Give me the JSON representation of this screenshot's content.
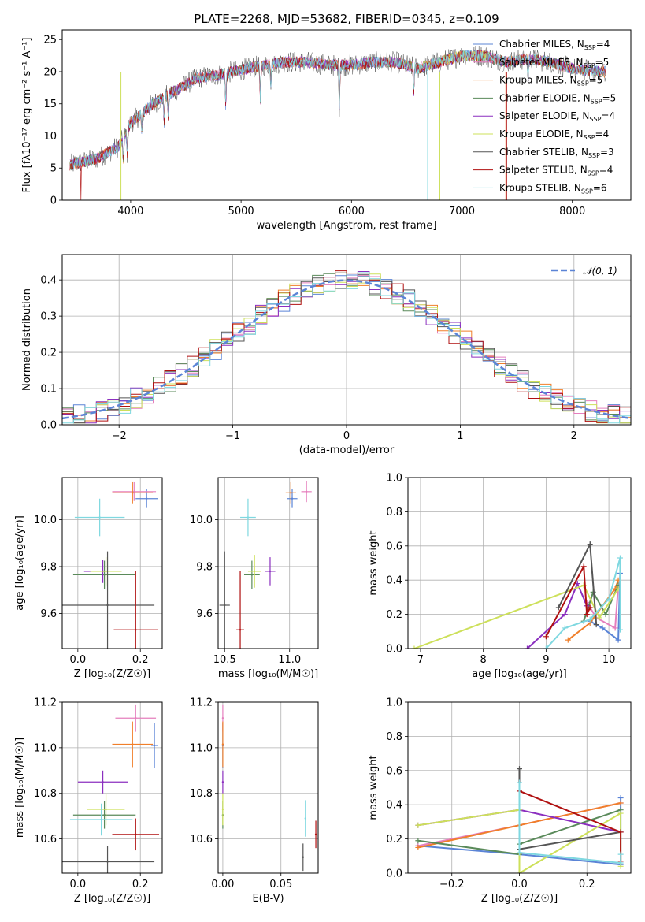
{
  "figure": {
    "title": "PLATE=2268, MJD=53682, FIBERID=0345, z=0.109"
  },
  "colors": {
    "Chabrier MILES": "#5b84d6",
    "Salpeter MILES": "#e57fbd",
    "Kroupa MILES": "#f07f2a",
    "Chabrier ELODIE": "#5a8a5a",
    "Salpeter ELODIE": "#8b2fbf",
    "Kroupa ELODIE": "#cde05a",
    "Chabrier STELIB": "#555555",
    "Salpeter STELIB": "#b01010",
    "Kroupa STELIB": "#7fd8e0",
    "normal": "#5b84d6"
  },
  "chart_data": [
    {
      "id": "spectrum",
      "type": "line",
      "title": "PLATE=2268, MJD=53682, FIBERID=0345, z=0.109",
      "xlabel": "wavelength [Angstrom, rest frame]",
      "ylabel": "Flux [fλ10⁻¹⁷ erg cm⁻² s⁻¹ A⁻¹]",
      "xlim": [
        3380,
        8530
      ],
      "ylim": [
        0,
        26.5
      ],
      "xticks": [
        4000,
        5000,
        6000,
        7000,
        8000
      ],
      "yticks": [
        0,
        5,
        10,
        15,
        20,
        25
      ],
      "grid": false,
      "legend_position": "right",
      "continuum_wavelength": [
        3450,
        3700,
        3900,
        4000,
        4200,
        4400,
        4600,
        4800,
        5000,
        5200,
        5400,
        5600,
        5800,
        6000,
        6200,
        6400,
        6600,
        6800,
        7000,
        7200,
        7400,
        7600,
        7800,
        8000,
        8300
      ],
      "continuum_flux": [
        5.5,
        6.5,
        8.5,
        12,
        15,
        17,
        19,
        19.5,
        20.3,
        21,
        21.5,
        21.5,
        21,
        21,
        21.5,
        21.5,
        20.5,
        21.5,
        22.5,
        22.5,
        21.5,
        22,
        21.5,
        20.5,
        20
      ],
      "series": [
        {
          "name": "Chabrier MILES, N_SSP=4"
        },
        {
          "name": "Salpeter MILES, N_SSP=5"
        },
        {
          "name": "Kroupa MILES, N_SSP=5"
        },
        {
          "name": "Chabrier ELODIE, N_SSP=5"
        },
        {
          "name": "Salpeter ELODIE, N_SSP=4"
        },
        {
          "name": "Kroupa ELODIE, N_SSP=4"
        },
        {
          "name": "Chabrier STELIB, N_SSP=3"
        },
        {
          "name": "Salpeter STELIB, N_SSP=4"
        },
        {
          "name": "Kroupa STELIB, N_SSP=6"
        }
      ]
    },
    {
      "id": "residuals",
      "type": "line",
      "xlabel": "(data-model)/error",
      "ylabel": "Normed distribution",
      "xlim": [
        -2.5,
        2.5
      ],
      "ylim": [
        0,
        0.47
      ],
      "xticks": [
        -2,
        -1,
        0,
        1,
        2
      ],
      "yticks": [
        0.0,
        0.1,
        0.2,
        0.3,
        0.4
      ],
      "grid": true,
      "legend_position": "top-right",
      "normal_label": "𝒩(0, 1)",
      "bin_width": 0.1,
      "note": "nine step histograms of residuals with a dashed unit normal curve"
    },
    {
      "id": "age_vs_Z",
      "type": "scatter",
      "xlabel": "Z [log₁₀(Z/Z☉)]",
      "ylabel": "age  [log₁₀(age/yr)]",
      "xlim": [
        -0.05,
        0.27
      ],
      "ylim": [
        9.45,
        10.18
      ],
      "xticks": [
        0.0,
        0.2
      ],
      "yticks": [
        9.6,
        9.8,
        10.0
      ],
      "grid": true,
      "points": [
        {
          "series": "Chabrier MILES",
          "x": 0.22,
          "y": 10.09,
          "xerr": 0.035,
          "yerr": 0.04
        },
        {
          "series": "Salpeter MILES",
          "x": 0.18,
          "y": 10.12,
          "xerr": 0.07,
          "yerr": 0.04
        },
        {
          "series": "Kroupa MILES",
          "x": 0.175,
          "y": 10.115,
          "xerr": 0.065,
          "yerr": 0.045
        },
        {
          "series": "Chabrier ELODIE",
          "x": 0.085,
          "y": 9.765,
          "xerr": 0.1,
          "yerr": 0.06
        },
        {
          "series": "Salpeter ELODIE",
          "x": 0.08,
          "y": 9.78,
          "xerr": 0.06,
          "yerr": 0.05
        },
        {
          "series": "Kroupa ELODIE",
          "x": 0.09,
          "y": 9.78,
          "xerr": 0.05,
          "yerr": 0.06
        },
        {
          "series": "Chabrier STELIB",
          "x": 0.095,
          "y": 9.635,
          "xerr": 0.15,
          "yerr": 0.23
        },
        {
          "series": "Salpeter STELIB",
          "x": 0.185,
          "y": 9.53,
          "xerr": 0.07,
          "yerr": 0.25
        },
        {
          "series": "Kroupa STELIB",
          "x": 0.07,
          "y": 10.01,
          "xerr": 0.08,
          "yerr": 0.08
        }
      ]
    },
    {
      "id": "age_vs_mass",
      "type": "scatter",
      "xlabel": "mass [log₁₀(M/M☉)]",
      "ylabel": "",
      "xlim": [
        10.45,
        11.22
      ],
      "ylim": [
        9.45,
        10.18
      ],
      "xticks": [
        10.5,
        11.0
      ],
      "yticks": [
        9.6,
        9.8,
        10.0
      ],
      "grid": true,
      "points": [
        {
          "series": "Chabrier MILES",
          "x": 11.02,
          "y": 10.09,
          "xerr": 0.04,
          "yerr": 0.04
        },
        {
          "series": "Salpeter MILES",
          "x": 11.13,
          "y": 10.12,
          "xerr": 0.04,
          "yerr": 0.045
        },
        {
          "series": "Kroupa MILES",
          "x": 11.01,
          "y": 10.115,
          "xerr": 0.04,
          "yerr": 0.045
        },
        {
          "series": "Chabrier ELODIE",
          "x": 10.71,
          "y": 9.765,
          "xerr": 0.06,
          "yerr": 0.06
        },
        {
          "series": "Salpeter ELODIE",
          "x": 10.85,
          "y": 9.78,
          "xerr": 0.04,
          "yerr": 0.06
        },
        {
          "series": "Kroupa ELODIE",
          "x": 10.73,
          "y": 9.78,
          "xerr": 0.05,
          "yerr": 0.07
        },
        {
          "series": "Chabrier STELIB",
          "x": 10.5,
          "y": 9.635,
          "xerr": 0.04,
          "yerr": 0.23
        },
        {
          "series": "Salpeter STELIB",
          "x": 10.62,
          "y": 9.53,
          "xerr": 0.03,
          "yerr": 0.25
        },
        {
          "series": "Kroupa STELIB",
          "x": 10.68,
          "y": 10.01,
          "xerr": 0.06,
          "yerr": 0.08
        }
      ]
    },
    {
      "id": "weight_vs_age",
      "type": "line",
      "xlabel": "age  [log₁₀(age/yr)]",
      "ylabel": "mass weight",
      "xlim": [
        6.8,
        10.35
      ],
      "ylim": [
        0.0,
        1.0
      ],
      "xticks": [
        7,
        8,
        9,
        10
      ],
      "yticks": [
        0.0,
        0.2,
        0.4,
        0.6,
        0.8,
        1.0
      ],
      "grid": true,
      "series": [
        {
          "key": "Chabrier MILES",
          "x": [
            9.7,
            9.9,
            10.15,
            10.18
          ],
          "y": [
            0.16,
            0.12,
            0.05,
            0.44
          ]
        },
        {
          "key": "Salpeter MILES",
          "x": [
            9.65,
            9.8,
            10.1,
            10.15
          ],
          "y": [
            0.27,
            0.18,
            0.12,
            0.37
          ]
        },
        {
          "key": "Kroupa MILES",
          "x": [
            9.35,
            9.7,
            10.1,
            10.15
          ],
          "y": [
            0.05,
            0.15,
            0.35,
            0.4
          ]
        },
        {
          "key": "Chabrier ELODIE",
          "x": [
            9.6,
            9.75,
            9.95,
            10.15
          ],
          "y": [
            0.16,
            0.33,
            0.2,
            0.37
          ]
        },
        {
          "key": "Salpeter ELODIE",
          "x": [
            8.7,
            9.3,
            9.5,
            9.65
          ],
          "y": [
            0.0,
            0.2,
            0.38,
            0.25
          ]
        },
        {
          "key": "Kroupa ELODIE",
          "x": [
            6.9,
            9.6,
            9.85,
            10.15
          ],
          "y": [
            0.0,
            0.37,
            0.18,
            0.35
          ]
        },
        {
          "key": "Chabrier STELIB",
          "x": [
            9.2,
            9.7,
            9.8
          ],
          "y": [
            0.24,
            0.61,
            0.14
          ]
        },
        {
          "key": "Salpeter STELIB",
          "x": [
            9.0,
            9.6,
            9.65,
            9.7
          ],
          "y": [
            0.07,
            0.48,
            0.2,
            0.24
          ]
        },
        {
          "key": "Kroupa STELIB",
          "x": [
            9.0,
            9.3,
            9.7,
            10.0,
            10.18,
            10.18
          ],
          "y": [
            0.0,
            0.12,
            0.17,
            0.29,
            0.53,
            0.11
          ]
        }
      ]
    },
    {
      "id": "mass_vs_Z",
      "type": "scatter",
      "xlabel": "Z [log₁₀(Z/Z☉)]",
      "ylabel": "mass [log₁₀(M/M☉)]",
      "xlim": [
        -0.05,
        0.27
      ],
      "ylim": [
        10.45,
        11.2
      ],
      "xticks": [
        0.0,
        0.2
      ],
      "yticks": [
        10.6,
        10.8,
        11.0,
        11.2
      ],
      "grid": true,
      "points": [
        {
          "series": "Chabrier MILES",
          "x": 0.245,
          "y": 11.01,
          "xerr": 0.01,
          "yerr": 0.1
        },
        {
          "series": "Salpeter MILES",
          "x": 0.185,
          "y": 11.13,
          "xerr": 0.065,
          "yerr": 0.06
        },
        {
          "series": "Kroupa MILES",
          "x": 0.175,
          "y": 11.015,
          "xerr": 0.065,
          "yerr": 0.1
        },
        {
          "series": "Chabrier ELODIE",
          "x": 0.085,
          "y": 10.705,
          "xerr": 0.1,
          "yerr": 0.06
        },
        {
          "series": "Salpeter ELODIE",
          "x": 0.08,
          "y": 10.85,
          "xerr": 0.08,
          "yerr": 0.05
        },
        {
          "series": "Kroupa ELODIE",
          "x": 0.09,
          "y": 10.73,
          "xerr": 0.06,
          "yerr": 0.07
        },
        {
          "series": "Chabrier STELIB",
          "x": 0.095,
          "y": 10.5,
          "xerr": 0.15,
          "yerr": 0.07
        },
        {
          "series": "Salpeter STELIB",
          "x": 0.185,
          "y": 10.62,
          "xerr": 0.075,
          "yerr": 0.07
        },
        {
          "series": "Kroupa STELIB",
          "x": 0.075,
          "y": 10.685,
          "xerr": 0.1,
          "yerr": 0.07
        }
      ]
    },
    {
      "id": "mass_vs_ebv",
      "type": "scatter",
      "xlabel": "E(B-V)",
      "ylabel": "",
      "xlim": [
        -0.004,
        0.082
      ],
      "ylim": [
        10.45,
        11.2
      ],
      "xticks": [
        0.0,
        0.05
      ],
      "yticks": [
        10.6,
        10.8,
        11.0,
        11.2
      ],
      "grid": true,
      "points": [
        {
          "series": "Chabrier MILES",
          "x": 0.0,
          "y": 11.01,
          "yerr": 0.1
        },
        {
          "series": "Salpeter MILES",
          "x": 0.0,
          "y": 11.13,
          "yerr": 0.06
        },
        {
          "series": "Kroupa MILES",
          "x": 0.0,
          "y": 11.015,
          "yerr": 0.1
        },
        {
          "series": "Chabrier ELODIE",
          "x": 0.0,
          "y": 10.705,
          "yerr": 0.06
        },
        {
          "series": "Salpeter ELODIE",
          "x": 0.0,
          "y": 10.85,
          "yerr": 0.05
        },
        {
          "series": "Kroupa ELODIE",
          "x": 0.0,
          "y": 10.73,
          "yerr": 0.07
        },
        {
          "series": "Chabrier STELIB",
          "x": 0.069,
          "y": 10.52,
          "yerr": 0.06
        },
        {
          "series": "Salpeter STELIB",
          "x": 0.08,
          "y": 10.62,
          "yerr": 0.06
        },
        {
          "series": "Kroupa STELIB",
          "x": 0.071,
          "y": 10.69,
          "yerr": 0.08
        }
      ]
    },
    {
      "id": "weight_vs_Z",
      "type": "line",
      "xlabel": "Z [log₁₀(Z/Z☉)]",
      "ylabel": "mass weight",
      "xlim": [
        -0.33,
        0.33
      ],
      "ylim": [
        0.0,
        1.0
      ],
      "xticks": [
        -0.2,
        0.0,
        0.2
      ],
      "yticks": [
        0.0,
        0.2,
        0.4,
        0.6,
        0.8,
        1.0
      ],
      "grid": true,
      "series": [
        {
          "key": "Chabrier MILES",
          "x": [
            -0.3,
            0.0,
            0.3,
            0.3
          ],
          "y": [
            0.16,
            0.11,
            0.05,
            0.44
          ]
        },
        {
          "key": "Salpeter MILES",
          "x": [
            -0.3,
            0.0,
            0.3
          ],
          "y": [
            0.16,
            0.28,
            0.41
          ]
        },
        {
          "key": "Kroupa MILES",
          "x": [
            -0.3,
            0.0,
            0.3
          ],
          "y": [
            0.15,
            0.28,
            0.41
          ]
        },
        {
          "key": "Chabrier ELODIE",
          "x": [
            -0.3,
            0.0,
            0.0,
            0.3
          ],
          "y": [
            0.19,
            0.11,
            0.17,
            0.37
          ]
        },
        {
          "key": "Salpeter ELODIE",
          "x": [
            -0.3,
            0.0,
            0.3
          ],
          "y": [
            0.28,
            0.37,
            0.24
          ]
        },
        {
          "key": "Kroupa ELODIE",
          "x": [
            -0.3,
            0.0,
            0.0,
            0.3,
            0.3
          ],
          "y": [
            0.28,
            0.37,
            0.0,
            0.35,
            0.04
          ]
        },
        {
          "key": "Chabrier STELIB",
          "x": [
            0.0,
            0.0,
            0.3
          ],
          "y": [
            0.61,
            0.14,
            0.24
          ]
        },
        {
          "key": "Salpeter STELIB",
          "x": [
            0.0,
            0.3,
            0.3
          ],
          "y": [
            0.48,
            0.24,
            0.07
          ]
        },
        {
          "key": "Kroupa STELIB",
          "x": [
            0.0,
            0.0,
            0.3,
            0.3
          ],
          "y": [
            0.53,
            0.12,
            0.06,
            0.11
          ]
        }
      ]
    }
  ]
}
